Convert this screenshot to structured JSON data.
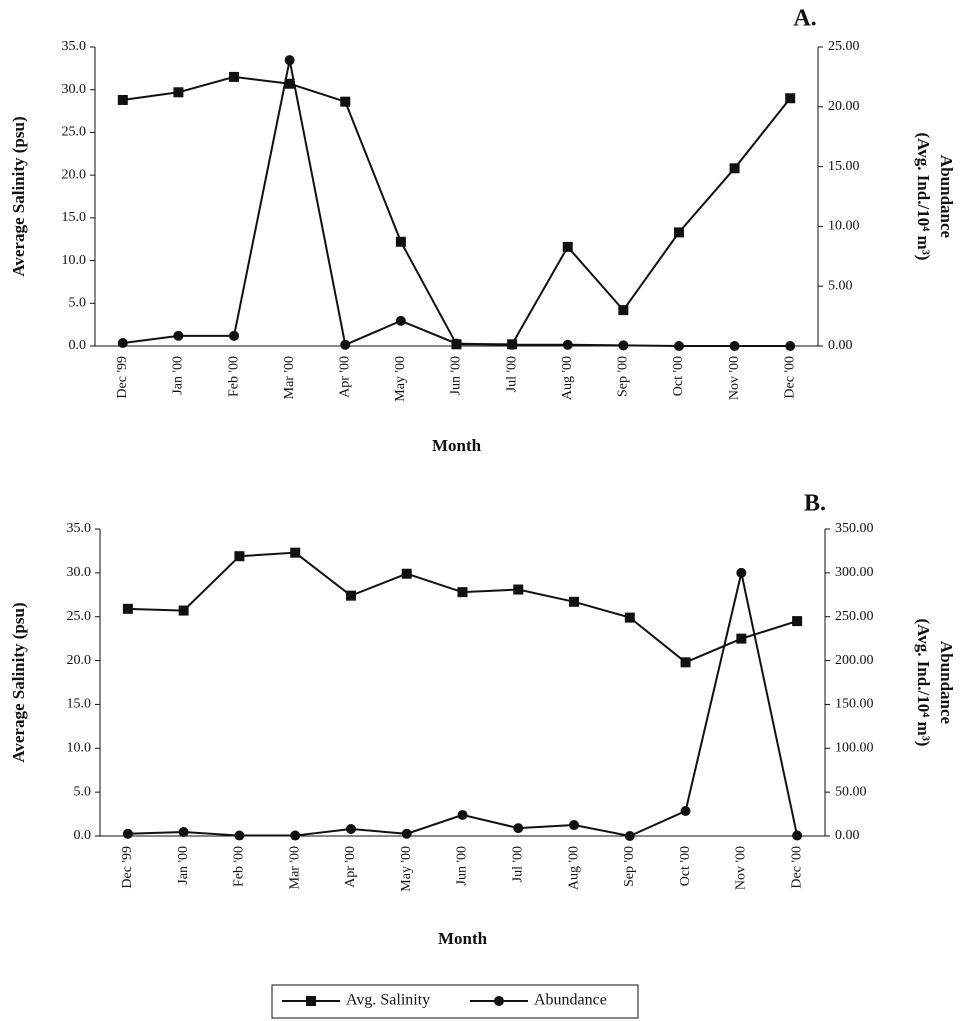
{
  "chart_data": [
    {
      "type": "line",
      "title": "A.",
      "xlabel": "Month",
      "ylabel": "Average Salinity (psu)",
      "y2label": [
        "Abundance",
        "(Avg. Ind./10⁴ m³)"
      ],
      "categories": [
        "Dec '99",
        "Jan '00",
        "Feb '00",
        "Mar '00",
        "Apr '00",
        "May '00",
        "Jun '00",
        "Jul '00",
        "Aug '00",
        "Sep '00",
        "Oct '00",
        "Nov '00",
        "Dec '00"
      ],
      "series": [
        {
          "name": "Avg. Salinity",
          "color": "#111111",
          "marker": "square",
          "values": [
            28.8,
            29.7,
            31.5,
            30.7,
            28.6,
            12.2,
            0.2,
            0.2,
            11.6,
            4.2,
            13.3,
            20.8,
            29.0
          ]
        },
        {
          "name": "Abundance",
          "color": "#111111",
          "marker": "circle",
          "axis": "y2",
          "values": [
            0.25,
            0.85,
            0.85,
            23.9,
            0.1,
            2.1,
            0.2,
            0.1,
            0.1,
            0.05,
            0,
            0,
            0
          ]
        }
      ],
      "ylim": [
        0,
        35
      ],
      "yticks": [
        {
          "value": 0,
          "label": "0.0"
        },
        {
          "value": 5,
          "label": "5.0"
        },
        {
          "value": 10,
          "label": "10.0"
        },
        {
          "value": 15,
          "label": "15.0"
        },
        {
          "value": 20,
          "label": "20.0"
        },
        {
          "value": 25,
          "label": "25.0"
        },
        {
          "value": 30,
          "label": "30.0"
        },
        {
          "value": 35,
          "label": "35.0"
        }
      ],
      "y2lim": [
        0,
        25
      ],
      "y2ticks": [
        {
          "value": 0,
          "label": "0.00"
        },
        {
          "value": 5,
          "label": "5.00"
        },
        {
          "value": 10,
          "label": "10.00"
        },
        {
          "value": 15,
          "label": "15.00"
        },
        {
          "value": 20,
          "label": "20.00"
        },
        {
          "value": 25,
          "label": "25.00"
        }
      ]
    },
    {
      "type": "line",
      "title": "B.",
      "xlabel": "Month",
      "ylabel": "Average Salinity (psu)",
      "y2label": [
        "Abundance",
        "(Avg. Ind./10⁴ m³)"
      ],
      "categories": [
        "Dec '99",
        "Jan '00",
        "Feb '00",
        "Mar '00",
        "Apr '00",
        "May '00",
        "Jun '00",
        "Jul '00",
        "Aug '00",
        "Sep '00",
        "Oct '00",
        "Nov '00",
        "Dec '00"
      ],
      "series": [
        {
          "name": "Avg. Salinity",
          "color": "#111111",
          "marker": "square",
          "values": [
            25.9,
            25.7,
            31.9,
            32.3,
            27.4,
            29.9,
            27.8,
            28.1,
            26.7,
            24.9,
            19.8,
            22.5,
            24.5
          ]
        },
        {
          "name": "Abundance",
          "color": "#111111",
          "marker": "circle",
          "axis": "y2",
          "values": [
            2.5,
            4.5,
            0.5,
            0.5,
            8,
            2.5,
            24,
            9,
            12.5,
            0,
            28.5,
            300,
            0.5
          ]
        }
      ],
      "ylim": [
        0,
        35
      ],
      "yticks": [
        {
          "value": 0,
          "label": "0.0"
        },
        {
          "value": 5,
          "label": "5.0"
        },
        {
          "value": 10,
          "label": "10.0"
        },
        {
          "value": 15,
          "label": "15.0"
        },
        {
          "value": 20,
          "label": "20.0"
        },
        {
          "value": 25,
          "label": "25.0"
        },
        {
          "value": 30,
          "label": "30.0"
        },
        {
          "value": 35,
          "label": "35.0"
        }
      ],
      "y2lim": [
        0,
        350
      ],
      "y2ticks": [
        {
          "value": 0,
          "label": "0.00"
        },
        {
          "value": 50,
          "label": "50.00"
        },
        {
          "value": 100,
          "label": "100.00"
        },
        {
          "value": 150,
          "label": "150.00"
        },
        {
          "value": 200,
          "label": "200.00"
        },
        {
          "value": 250,
          "label": "250.00"
        },
        {
          "value": 300,
          "label": "300.00"
        },
        {
          "value": 350,
          "label": "350.00"
        }
      ]
    }
  ]
}
